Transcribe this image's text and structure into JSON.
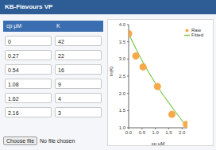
{
  "header": {
    "title": "KB-Flavours VP"
  },
  "table": {
    "columns": [
      "cp μM",
      "K"
    ],
    "rows": [
      [
        0,
        42
      ],
      [
        0.27,
        22
      ],
      [
        0.54,
        16
      ],
      [
        1.08,
        9
      ],
      [
        1.62,
        4
      ],
      [
        2.16,
        3
      ]
    ]
  },
  "chart_data": {
    "type": "scatter",
    "x_label": "cp μM",
    "y_label": "ln(K)",
    "x": [
      0,
      0.27,
      0.54,
      1.08,
      1.62,
      2.16
    ],
    "series": [
      {
        "name": "Raw",
        "type": "scatter",
        "marker": "circle",
        "color": "#f5a94a",
        "values": [
          3.74,
          3.09,
          2.77,
          2.2,
          1.39,
          1.1
        ]
      },
      {
        "name": "Fitted",
        "type": "line",
        "line_style": "solid",
        "color": "#7dc94b",
        "values": [
          3.74,
          3.3,
          2.9,
          2.2,
          1.6,
          1.05
        ]
      }
    ],
    "xlim": [
      0,
      2.2
    ],
    "xticks": [
      {
        "value": 0,
        "label": "0.0"
      },
      0.5,
      {
        "value": 1,
        "label": "1.0"
      },
      1.5,
      {
        "value": 2,
        "label": "2.0"
      }
    ],
    "ylim": [
      1,
      4
    ],
    "yticks": [
      {
        "value": 1,
        "label": "1.0"
      },
      1.5,
      {
        "value": 2,
        "label": "2.0"
      },
      2.5,
      {
        "value": 3,
        "label": "3.0"
      },
      3.5,
      {
        "value": 4,
        "label": "4.0"
      }
    ],
    "grid": false,
    "legend": "top-right"
  },
  "file_input": {
    "button": "Choose file",
    "status": "No file chosen"
  }
}
